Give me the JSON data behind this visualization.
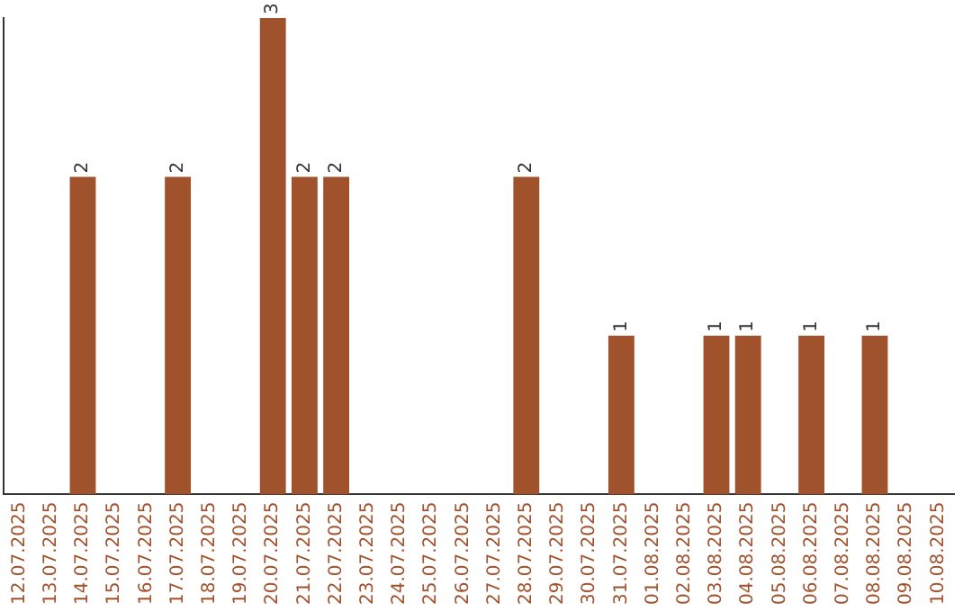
{
  "chart_data": {
    "type": "bar",
    "categories": [
      "12.07.2025",
      "13.07.2025",
      "14.07.2025",
      "15.07.2025",
      "16.07.2025",
      "17.07.2025",
      "18.07.2025",
      "19.07.2025",
      "20.07.2025",
      "21.07.2025",
      "22.07.2025",
      "23.07.2025",
      "24.07.2025",
      "25.07.2025",
      "26.07.2025",
      "27.07.2025",
      "28.07.2025",
      "29.07.2025",
      "30.07.2025",
      "31.07.2025",
      "01.08.2025",
      "02.08.2025",
      "03.08.2025",
      "04.08.2025",
      "05.08.2025",
      "06.08.2025",
      "07.08.2025",
      "08.08.2025",
      "09.08.2025",
      "10.08.2025"
    ],
    "values": [
      0,
      0,
      2,
      0,
      0,
      2,
      0,
      0,
      3,
      2,
      2,
      0,
      0,
      0,
      0,
      0,
      2,
      0,
      0,
      1,
      0,
      0,
      1,
      1,
      0,
      1,
      0,
      1,
      0,
      0
    ],
    "value_labels": [
      null,
      null,
      "2",
      null,
      null,
      "2",
      null,
      null,
      "3",
      "2",
      "2",
      null,
      null,
      null,
      null,
      null,
      "2",
      null,
      null,
      "1",
      null,
      null,
      "1",
      "1",
      null,
      "1",
      null,
      "1",
      null,
      null
    ],
    "color": "#a0522d",
    "ylim": [
      0,
      3
    ],
    "tick_labels": "x",
    "grid": false,
    "legend": false
  }
}
